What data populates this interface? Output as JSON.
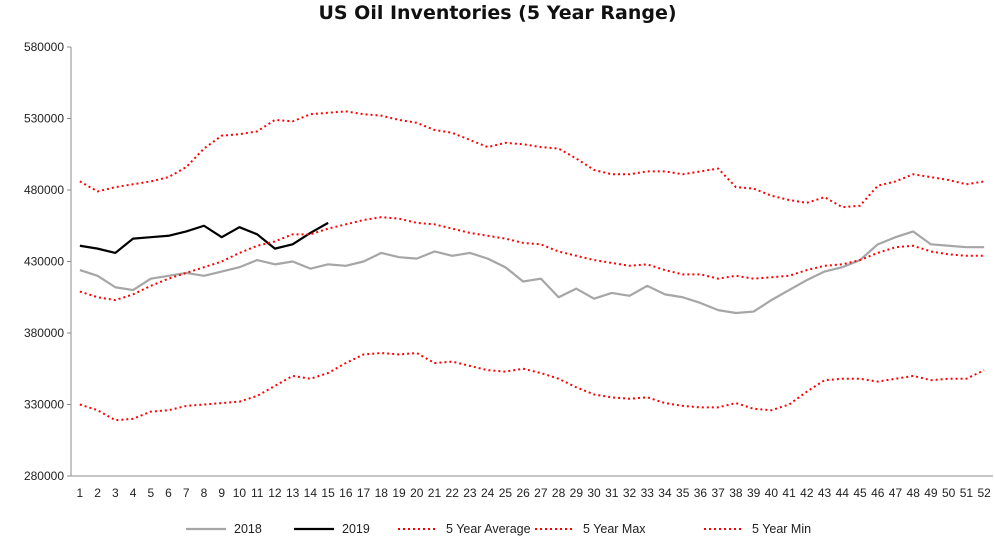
{
  "chart_data": {
    "type": "line",
    "title": "US Oil Inventories (5 Year Range)",
    "xlabel": "",
    "ylabel": "",
    "ylim": [
      280000,
      580000
    ],
    "yticks": [
      280000,
      330000,
      380000,
      430000,
      480000,
      530000,
      580000
    ],
    "ytick_labels": [
      "280000",
      "330000",
      "380000",
      "430000",
      "480000",
      "530000",
      "580000"
    ],
    "x": [
      1,
      2,
      3,
      4,
      5,
      6,
      7,
      8,
      9,
      10,
      11,
      12,
      13,
      14,
      15,
      16,
      17,
      18,
      19,
      20,
      21,
      22,
      23,
      24,
      25,
      26,
      27,
      28,
      29,
      30,
      31,
      32,
      33,
      34,
      35,
      36,
      37,
      38,
      39,
      40,
      41,
      42,
      43,
      44,
      45,
      46,
      47,
      48,
      49,
      50,
      51,
      52
    ],
    "x_labels": [
      "1",
      "2",
      "3",
      "4",
      "5",
      "6",
      "7",
      "8",
      "9",
      "10",
      "11",
      "12",
      "13",
      "14",
      "15",
      "16",
      "17",
      "18",
      "19",
      "20",
      "21",
      "22",
      "23",
      "24",
      "25",
      "26",
      "27",
      "28",
      "29",
      "30",
      "31",
      "32",
      "33",
      "34",
      "35",
      "36",
      "37",
      "38",
      "39",
      "40",
      "41",
      "42",
      "43",
      "44",
      "45",
      "46",
      "47",
      "48",
      "49",
      "50",
      "51",
      "52"
    ],
    "grid": false,
    "legend_position": "bottom",
    "series": [
      {
        "name": "2018",
        "color": "#a6a6a6",
        "style": "solid",
        "values": [
          424000,
          420000,
          412000,
          410000,
          418000,
          420000,
          422000,
          420000,
          423000,
          426000,
          431000,
          428000,
          430000,
          425000,
          428000,
          427000,
          430000,
          436000,
          433000,
          432000,
          437000,
          434000,
          436000,
          432000,
          426000,
          416000,
          418000,
          405000,
          411000,
          404000,
          408000,
          406000,
          413000,
          407000,
          405000,
          401000,
          396000,
          394000,
          395000,
          403000,
          410000,
          417000,
          423000,
          426000,
          431000,
          442000,
          447000,
          451000,
          442000,
          441000,
          440000,
          440000
        ]
      },
      {
        "name": "2019",
        "color": "#000000",
        "style": "solid",
        "values": [
          441000,
          439000,
          436000,
          446000,
          447000,
          448000,
          451000,
          455000,
          447000,
          454000,
          449000,
          439000,
          442000,
          450000,
          457000,
          null,
          null,
          null,
          null,
          null,
          null,
          null,
          null,
          null,
          null,
          null,
          null,
          null,
          null,
          null,
          null,
          null,
          null,
          null,
          null,
          null,
          null,
          null,
          null,
          null,
          null,
          null,
          null,
          null,
          null,
          null,
          null,
          null,
          null,
          null,
          null,
          null
        ]
      },
      {
        "name": "5 Year Average",
        "color": "#ff0000",
        "style": "dotted",
        "values": [
          409000,
          405000,
          403000,
          407000,
          413000,
          418000,
          422000,
          426000,
          430000,
          436000,
          441000,
          444000,
          449000,
          449000,
          453000,
          456000,
          459000,
          461000,
          460000,
          457000,
          456000,
          453000,
          450000,
          448000,
          446000,
          443000,
          442000,
          437000,
          434000,
          431000,
          429000,
          427000,
          428000,
          424000,
          421000,
          421000,
          418000,
          420000,
          418000,
          419000,
          420000,
          424000,
          427000,
          428000,
          431000,
          436000,
          440000,
          441000,
          437000,
          435000,
          434000,
          434000
        ]
      },
      {
        "name": "5 Year Max",
        "color": "#ff0000",
        "style": "dotted",
        "values": [
          486000,
          479000,
          482000,
          484000,
          486000,
          489000,
          496000,
          509000,
          518000,
          519000,
          521000,
          529000,
          528000,
          533000,
          534000,
          535000,
          533000,
          532000,
          529000,
          527000,
          522000,
          520000,
          515000,
          510000,
          513000,
          512000,
          510000,
          509000,
          502000,
          494000,
          491000,
          491000,
          493000,
          493000,
          491000,
          493000,
          495000,
          482000,
          481000,
          476000,
          473000,
          471000,
          475000,
          468000,
          469000,
          483000,
          486000,
          491000,
          489000,
          487000,
          484000,
          486000
        ]
      },
      {
        "name": "5 Year Min",
        "color": "#ff0000",
        "style": "dotted",
        "values": [
          330000,
          326000,
          319000,
          320000,
          325000,
          326000,
          329000,
          330000,
          331000,
          332000,
          336000,
          343000,
          350000,
          348000,
          352000,
          359000,
          365000,
          366000,
          365000,
          366000,
          359000,
          360000,
          357000,
          354000,
          353000,
          355000,
          352000,
          348000,
          342000,
          337000,
          335000,
          334000,
          335000,
          331000,
          329000,
          328000,
          328000,
          331000,
          327000,
          326000,
          330000,
          339000,
          347000,
          348000,
          348000,
          346000,
          348000,
          350000,
          347000,
          348000,
          348000,
          354000
        ]
      }
    ]
  }
}
